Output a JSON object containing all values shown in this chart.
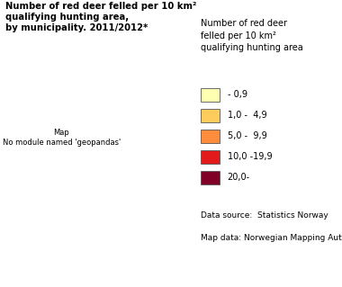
{
  "title_line1": "Number of red deer felled per 10 km²",
  "title_line2": "qualifying hunting area,",
  "title_line3": "by municipality. 2011/2012*",
  "legend_title": "Number of red deer\nfelled per 10 km²\nqualifying hunting area",
  "legend_categories": [
    {
      "label": "- 0,9",
      "color": "#FFFFB2"
    },
    {
      "label": "1,0 -  4,9",
      "color": "#FECC5C"
    },
    {
      "label": "5,0 -  9,9",
      "color": "#FD8D3C"
    },
    {
      "label": "10,0 -19,9",
      "color": "#E31A1C"
    },
    {
      "label": "20,0-",
      "color": "#800026"
    }
  ],
  "data_source": "Data source:  Statistics Norway",
  "map_data": "Map data: Norwegian Mapping Authority",
  "background_color": "#FFFFFF",
  "title_fontsize": 7.2,
  "legend_title_fontsize": 7.0,
  "legend_fontsize": 7.0,
  "source_fontsize": 6.5,
  "norway_xlim": [
    4.5,
    31.0
  ],
  "norway_ylim": [
    57.8,
    71.2
  ]
}
